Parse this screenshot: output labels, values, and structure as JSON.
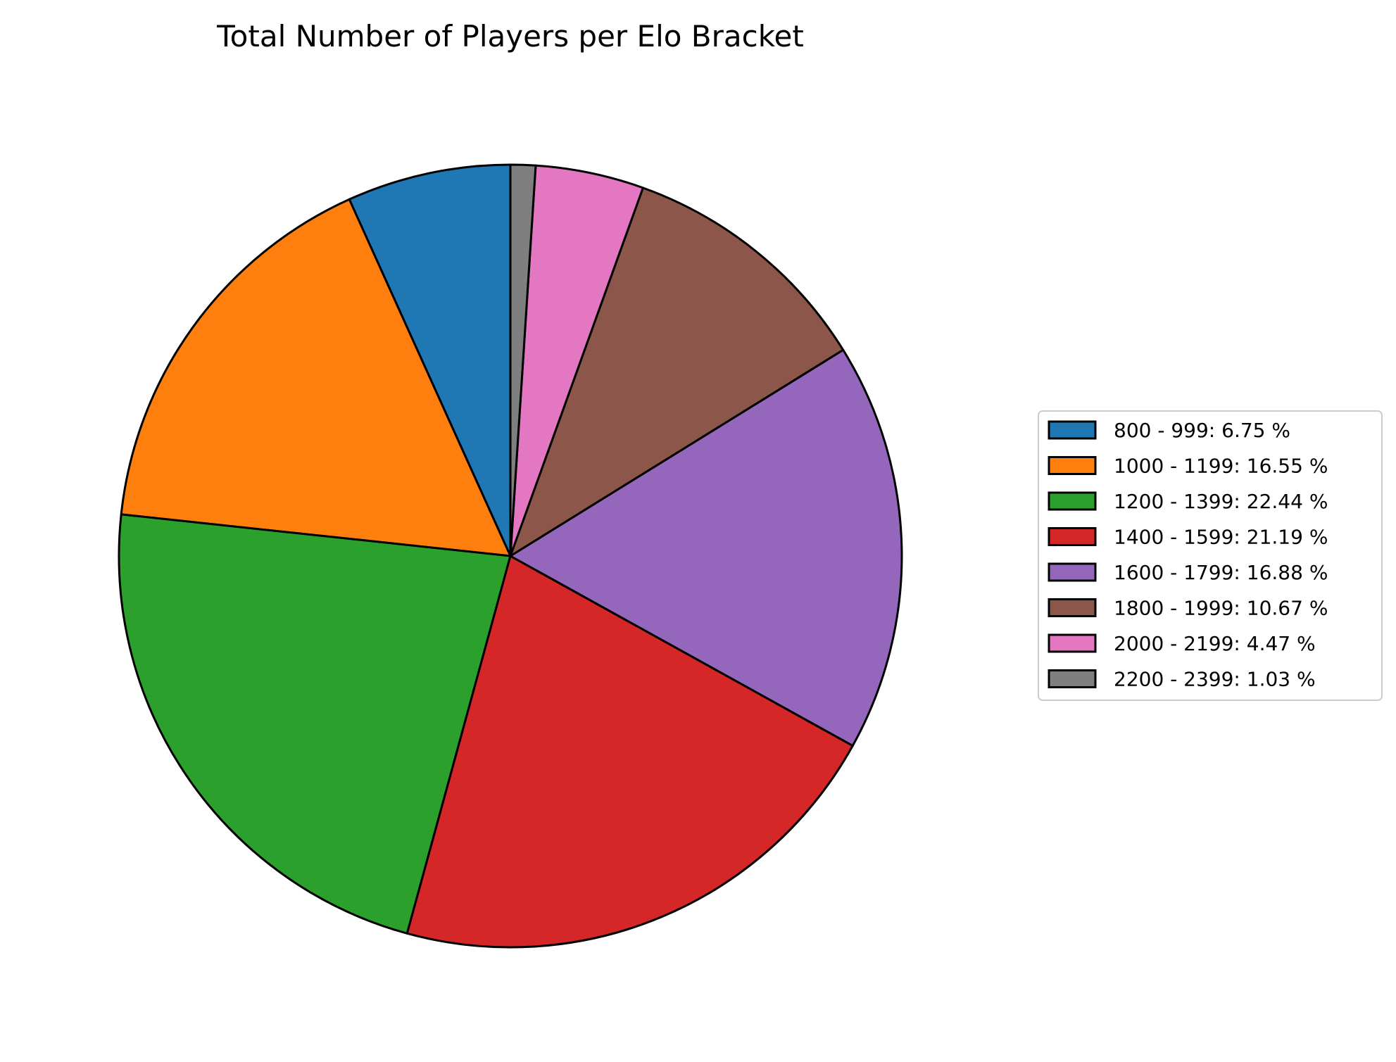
{
  "chart_data": {
    "type": "pie",
    "title": "Total Number of Players per Elo Bracket",
    "start_angle_deg": 90,
    "direction": "counterclockwise",
    "legend_position": "right",
    "slices": [
      {
        "label": "800 - 999: 6.75 %",
        "value": 6.75,
        "color": "#1f77b4"
      },
      {
        "label": "1000 - 1199: 16.55 %",
        "value": 16.55,
        "color": "#ff7f0e"
      },
      {
        "label": "1200 - 1399: 22.44 %",
        "value": 22.44,
        "color": "#2ca02c"
      },
      {
        "label": "1400 - 1599: 21.19 %",
        "value": 21.19,
        "color": "#d62728"
      },
      {
        "label": "1600 - 1799: 16.88 %",
        "value": 16.88,
        "color": "#9467bd"
      },
      {
        "label": "1800 - 1999: 10.67 %",
        "value": 10.67,
        "color": "#8c564b"
      },
      {
        "label": "2000 - 2199: 4.47 %",
        "value": 4.47,
        "color": "#e377c2"
      },
      {
        "label": "2200 - 2399: 1.03 %",
        "value": 1.03,
        "color": "#7f7f7f"
      }
    ]
  }
}
